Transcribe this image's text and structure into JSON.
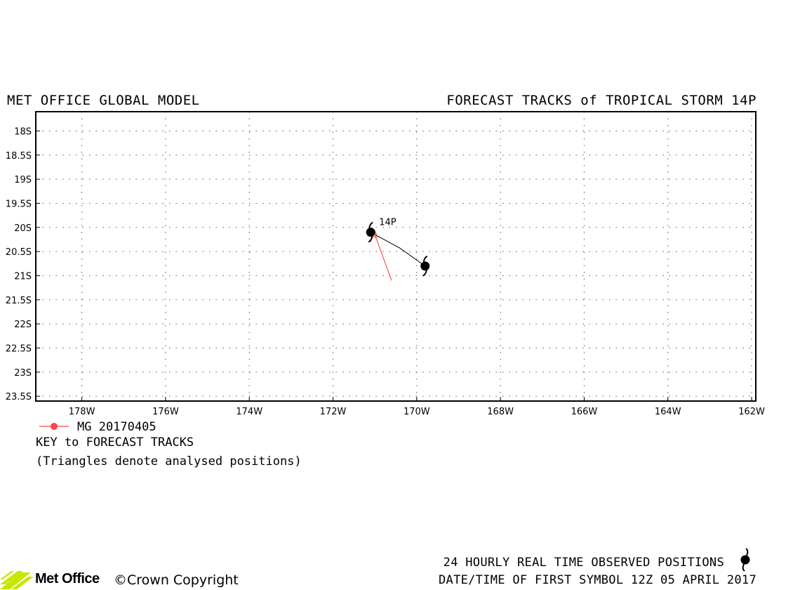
{
  "header": {
    "left_title": "MET OFFICE GLOBAL MODEL",
    "right_title": "FORECAST TRACKS of TROPICAL STORM 14P"
  },
  "map": {
    "lat_labels": [
      "18S",
      "18.5S",
      "19S",
      "19.5S",
      "20S",
      "20.5S",
      "21S",
      "21.5S",
      "22S",
      "22.5S",
      "23S",
      "23.5S"
    ],
    "lat_values": [
      -18,
      -18.5,
      -19,
      -19.5,
      -20,
      -20.5,
      -21,
      -21.5,
      -22,
      -22.5,
      -23,
      -23.5
    ],
    "lon_labels": [
      "178W",
      "176W",
      "174W",
      "172W",
      "170W",
      "168W",
      "166W",
      "164W",
      "162W"
    ],
    "lon_values": [
      -178,
      -176,
      -174,
      -172,
      -170,
      -168,
      -166,
      -164,
      -162
    ],
    "lon_range": [
      -179.1,
      -161.9
    ],
    "lat_range": [
      -17.6,
      -23.6
    ],
    "grid": "dotted",
    "storm_label": "14P",
    "observed_track": [
      {
        "lon": -169.8,
        "lat": -20.8
      },
      {
        "lon": -170.4,
        "lat": -20.43
      },
      {
        "lon": -171.1,
        "lat": -20.1
      }
    ],
    "forecast_track": {
      "name": "MG 20170405",
      "color": "#ff3333",
      "points": [
        {
          "lon": -170.6,
          "lat": -21.1
        },
        {
          "lon": -171.0,
          "lat": -20.15
        }
      ]
    }
  },
  "key": {
    "series_label": "MG 20170405",
    "series_color": "#ff4444",
    "title": "KEY to FORECAST TRACKS",
    "note": "(Triangles denote analysed positions)"
  },
  "footer": {
    "observed_label": "24 HOURLY REAL TIME OBSERVED POSITIONS",
    "first_symbol_label": "DATE/TIME OF FIRST SYMBOL 12Z 05 APRIL 2017",
    "brand_name": "Met Office",
    "copyright": "©Crown Copyright",
    "brand_color": "#c8e600"
  }
}
